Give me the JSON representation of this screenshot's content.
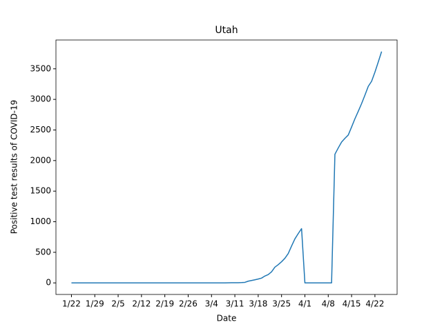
{
  "chart_data": {
    "type": "line",
    "title": "Utah",
    "xlabel": "Date",
    "ylabel": "Positive test results of COVID-19",
    "categories": [
      "1/22",
      null,
      null,
      null,
      null,
      null,
      null,
      "1/29",
      null,
      null,
      null,
      null,
      null,
      null,
      "2/5",
      null,
      null,
      null,
      null,
      null,
      null,
      "2/12",
      null,
      null,
      null,
      null,
      null,
      null,
      "2/19",
      null,
      null,
      null,
      null,
      null,
      null,
      "2/26",
      null,
      null,
      null,
      null,
      null,
      null,
      "3/4",
      null,
      null,
      null,
      null,
      null,
      null,
      "3/11",
      null,
      null,
      null,
      null,
      null,
      null,
      "3/18",
      null,
      null,
      null,
      null,
      null,
      null,
      "3/25",
      null,
      null,
      null,
      null,
      null,
      null,
      "4/1",
      null,
      null,
      null,
      null,
      null,
      null,
      "4/8",
      null,
      null,
      null,
      null,
      null,
      null,
      "4/15",
      null,
      null,
      null,
      null,
      null,
      null,
      "4/22",
      null,
      null
    ],
    "series": [
      {
        "name": "Utah",
        "color": "#1f77b4",
        "values": [
          0,
          0,
          0,
          0,
          0,
          0,
          0,
          0,
          0,
          0,
          0,
          0,
          0,
          0,
          0,
          0,
          0,
          0,
          0,
          0,
          0,
          0,
          0,
          0,
          0,
          0,
          0,
          0,
          0,
          0,
          0,
          0,
          0,
          0,
          0,
          0,
          0,
          0,
          0,
          0,
          0,
          0,
          0,
          0,
          0,
          0,
          0,
          1,
          2,
          2,
          3,
          5,
          9,
          28,
          39,
          51,
          63,
          78,
          112,
          136,
          181,
          257,
          298,
          346,
          402,
          480,
          602,
          719,
          806,
          887,
          0,
          0,
          0,
          0,
          0,
          0,
          0,
          0,
          0,
          2103,
          2206,
          2303,
          2363,
          2417,
          2548,
          2683,
          2805,
          2931,
          3069,
          3213,
          3296,
          3445,
          3612,
          3782
        ]
      }
    ],
    "ylim": [
      -189,
      3971
    ],
    "yticks": [
      0,
      500,
      1000,
      1500,
      2000,
      2500,
      3000,
      3500
    ],
    "grid": false
  }
}
